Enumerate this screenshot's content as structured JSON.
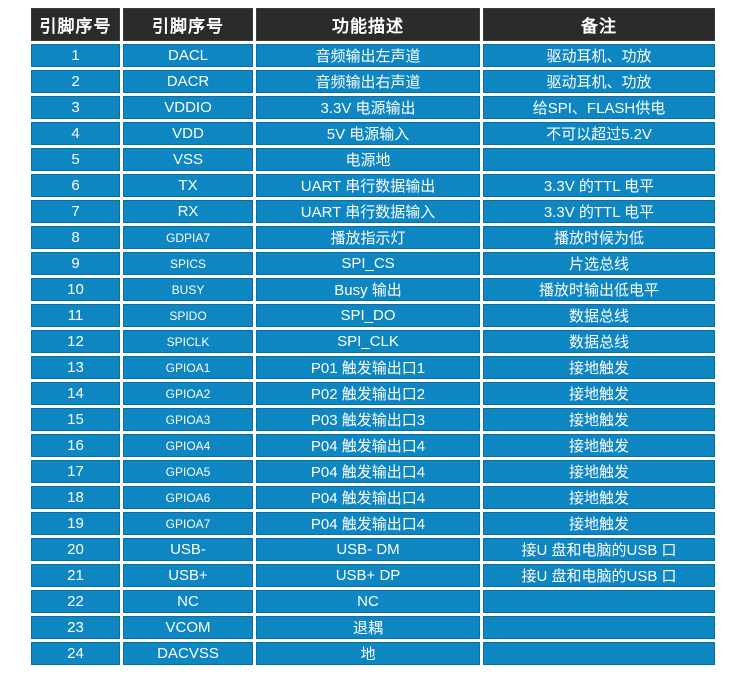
{
  "header": {
    "columns": [
      "引脚序号",
      "引脚序号",
      "功能描述",
      "备注"
    ]
  },
  "rows": [
    {
      "pin": "1",
      "name": "DACL",
      "desc": "音频输出左声道",
      "note": "驱动耳机、功放"
    },
    {
      "pin": "2",
      "name": "DACR",
      "desc": "音频输出右声道",
      "note": "驱动耳机、功放"
    },
    {
      "pin": "3",
      "name": "VDDIO",
      "desc": "3.3V 电源输出",
      "note": "给SPI、FLASH供电"
    },
    {
      "pin": "4",
      "name": "VDD",
      "desc": "5V 电源输入",
      "note": "不可以超过5.2V"
    },
    {
      "pin": "5",
      "name": "VSS",
      "desc": "电源地",
      "note": ""
    },
    {
      "pin": "6",
      "name": "TX",
      "desc": "UART 串行数据输出",
      "note": "3.3V 的TTL 电平"
    },
    {
      "pin": "7",
      "name": "RX",
      "desc": "UART 串行数据输入",
      "note": "3.3V 的TTL 电平"
    },
    {
      "pin": "8",
      "name": "GDPIA7",
      "desc": "播放指示灯",
      "note": "播放时候为低",
      "small_name": true
    },
    {
      "pin": "9",
      "name": "SPICS",
      "desc": "SPI_CS",
      "note": "片选总线",
      "small_name": true
    },
    {
      "pin": "10",
      "name": "BUSY",
      "desc": "Busy 输出",
      "note": "播放时输出低电平",
      "small_name": true
    },
    {
      "pin": "11",
      "name": "SPIDO",
      "desc": "SPI_DO",
      "note": "数据总线",
      "small_name": true
    },
    {
      "pin": "12",
      "name": "SPICLK",
      "desc": "SPI_CLK",
      "note": "数据总线",
      "small_name": true
    },
    {
      "pin": "13",
      "name": "GPIOA1",
      "desc": "P01 触发输出口1",
      "note": "接地触发",
      "small_name": true
    },
    {
      "pin": "14",
      "name": "GPIOA2",
      "desc": "P02 触发输出口2",
      "note": "接地触发",
      "small_name": true
    },
    {
      "pin": "15",
      "name": "GPIOA3",
      "desc": "P03 触发输出口3",
      "note": "接地触发",
      "small_name": true
    },
    {
      "pin": "16",
      "name": "GPIOA4",
      "desc": "P04 触发输出口4",
      "note": "接地触发",
      "small_name": true
    },
    {
      "pin": "17",
      "name": "GPIOA5",
      "desc": "P04 触发输出口4",
      "note": "接地触发",
      "small_name": true
    },
    {
      "pin": "18",
      "name": "GPIOA6",
      "desc": "P04 触发输出口4",
      "note": "接地触发",
      "small_name": true
    },
    {
      "pin": "19",
      "name": "GPIOA7",
      "desc": "P04 触发输出口4",
      "note": "接地触发",
      "small_name": true
    },
    {
      "pin": "20",
      "name": "USB-",
      "desc": "USB- DM",
      "note": "接U 盘和电脑的USB 口"
    },
    {
      "pin": "21",
      "name": "USB+",
      "desc": "USB+ DP",
      "note": "接U 盘和电脑的USB 口"
    },
    {
      "pin": "22",
      "name": "NC",
      "desc": "NC",
      "note": ""
    },
    {
      "pin": "23",
      "name": "VCOM",
      "desc": "退耦",
      "note": ""
    },
    {
      "pin": "24",
      "name": "DACVSS",
      "desc": "地",
      "note": ""
    }
  ],
  "colors": {
    "row_blue": "#0e86c1",
    "row_border": "#0b6fa3",
    "header_bg": "#2b2b2b",
    "text": "#ffffff",
    "page_background": "#ffffff"
  }
}
